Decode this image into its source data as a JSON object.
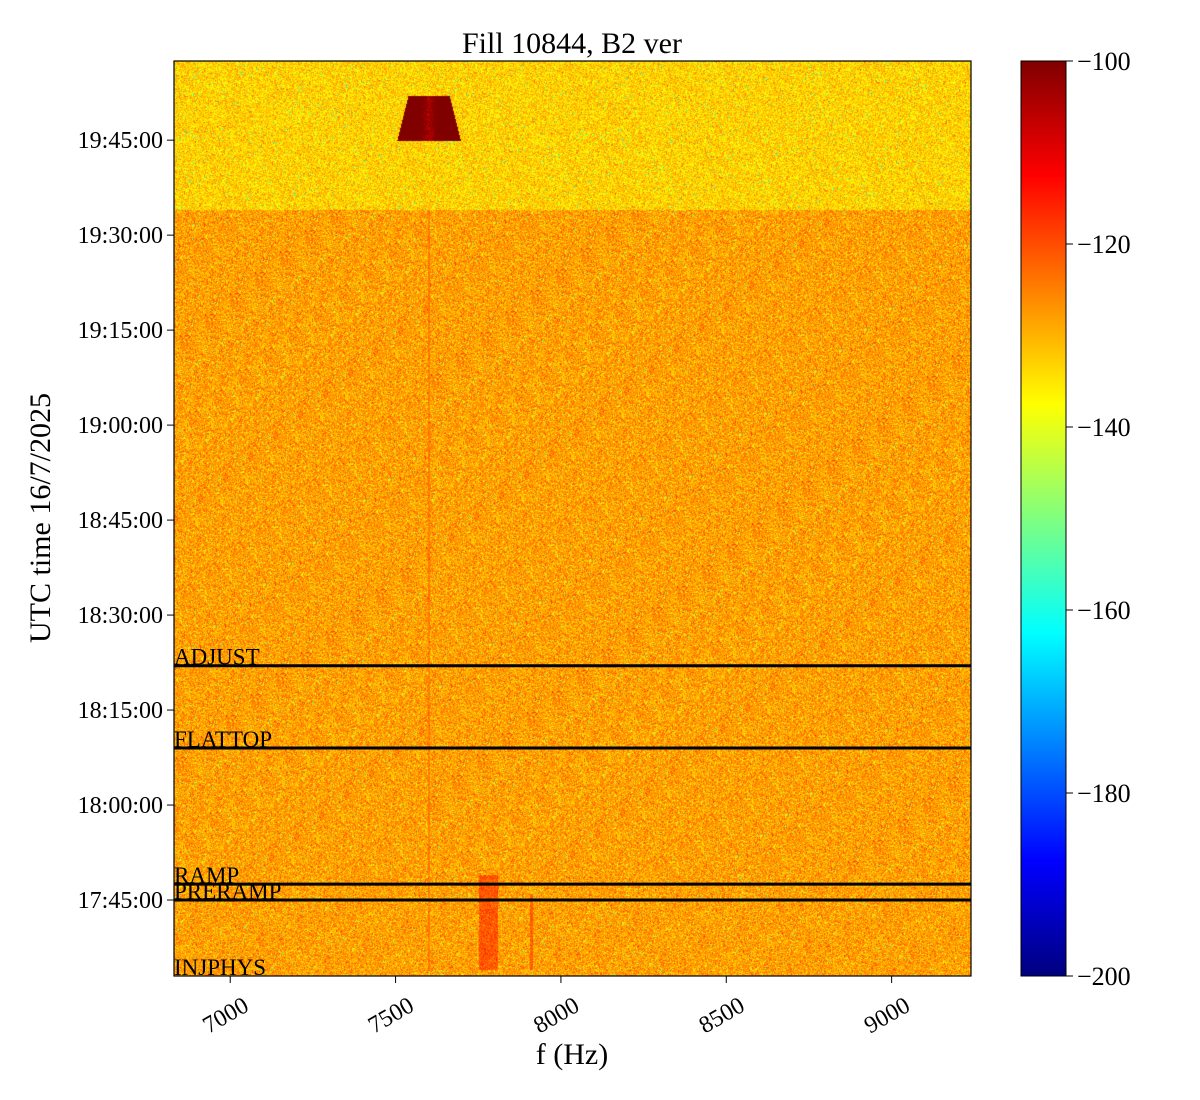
{
  "chart_data": {
    "type": "heatmap",
    "title": "Fill 10844, B2 ver",
    "xlabel": "f (Hz)",
    "ylabel": "UTC time 16/7/2025",
    "xlim": [
      6830,
      9240
    ],
    "ylim": [
      "17:33:00",
      "19:57:30"
    ],
    "x_ticks": [
      7000,
      7500,
      8000,
      8500,
      9000
    ],
    "x_tick_labels": [
      "7000",
      "7500",
      "8000",
      "8500",
      "9000"
    ],
    "y_ticks": [
      "17:45:00",
      "18:00:00",
      "18:15:00",
      "18:30:00",
      "18:45:00",
      "19:00:00",
      "19:15:00",
      "19:30:00",
      "19:45:00"
    ],
    "y_tick_labels": [
      "17:45:00",
      "18:00:00",
      "18:15:00",
      "18:30:00",
      "18:45:00",
      "19:00:00",
      "19:15:00",
      "19:30:00",
      "19:45:00"
    ],
    "colorbar": {
      "colormap": "jet",
      "range": [
        -200,
        -100
      ],
      "ticks": [
        -100,
        -120,
        -140,
        -160,
        -180,
        -200
      ],
      "tick_labels": [
        "−100",
        "−120",
        "−140",
        "−160",
        "−180",
        "−200"
      ]
    },
    "background_level": -128,
    "upper_region": {
      "from": "19:34:00",
      "level": -133
    },
    "features": [
      {
        "name": "hot spot",
        "f_center": 7600,
        "f_halfwidth": 60,
        "t_start": "19:45:00",
        "t_end": "19:52:00",
        "level": -104
      },
      {
        "name": "line",
        "f_center": 7910,
        "t_start": "17:34:00",
        "t_end": "17:46:00",
        "level": -122
      },
      {
        "name": "band",
        "f_center": 7780,
        "t_start": "17:34:00",
        "t_end": "17:49:00",
        "level": -121
      },
      {
        "name": "line",
        "f_center": 7600,
        "t_start": "17:34:00",
        "t_end": "19:34:00",
        "level": -125
      }
    ],
    "mode_markers": [
      {
        "label": "ADJUST",
        "time": "18:22:00"
      },
      {
        "label": "FLATTOP",
        "time": "18:09:00"
      },
      {
        "label": "RAMP",
        "time": "17:47:30"
      },
      {
        "label": "PRERAMP",
        "time": "17:45:00"
      },
      {
        "label": "INJPHYS",
        "time": "17:32:00"
      }
    ],
    "grid": false,
    "legend": "none"
  }
}
